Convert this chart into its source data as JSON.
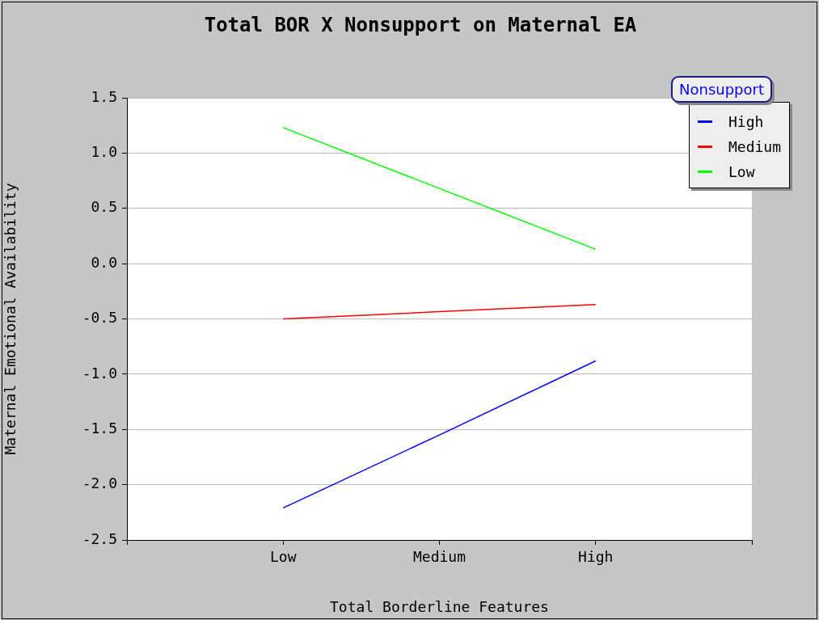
{
  "chart_data": {
    "type": "line",
    "title": "Total BOR X Nonsupport on Maternal EA",
    "xlabel": "Total Borderline Features",
    "ylabel": "Maternal Emotional Availability",
    "legend_title": "Nonsupport",
    "categories": [
      null,
      "Low",
      "Medium",
      "High",
      null
    ],
    "series": [
      {
        "name": "High",
        "color": "#0000ff",
        "values": [
          null,
          -2.21,
          -1.55,
          -0.88,
          null
        ]
      },
      {
        "name": "Medium",
        "color": "#ff0000",
        "values": [
          null,
          -0.5,
          -0.435,
          -0.37,
          null
        ]
      },
      {
        "name": "Low",
        "color": "#00ff00",
        "values": [
          null,
          1.23,
          0.68,
          0.13,
          null
        ]
      }
    ],
    "ylim": [
      -2.5,
      1.5
    ],
    "yticks": [
      {
        "value": -2.5,
        "label": "-2.5"
      },
      {
        "value": -2,
        "label": "-2.0"
      },
      {
        "value": -1.5,
        "label": "-1.5"
      },
      {
        "value": -1,
        "label": "-1.0"
      },
      {
        "value": -0.5,
        "label": "-0.5"
      },
      {
        "value": 0,
        "label": "0.0"
      },
      {
        "value": 0.5,
        "label": "0.5"
      },
      {
        "value": 1,
        "label": "1.0"
      },
      {
        "value": 1.5,
        "label": "1.5"
      }
    ],
    "grid": "y",
    "legend": "top right",
    "marker": "none",
    "line_style": "solid"
  }
}
